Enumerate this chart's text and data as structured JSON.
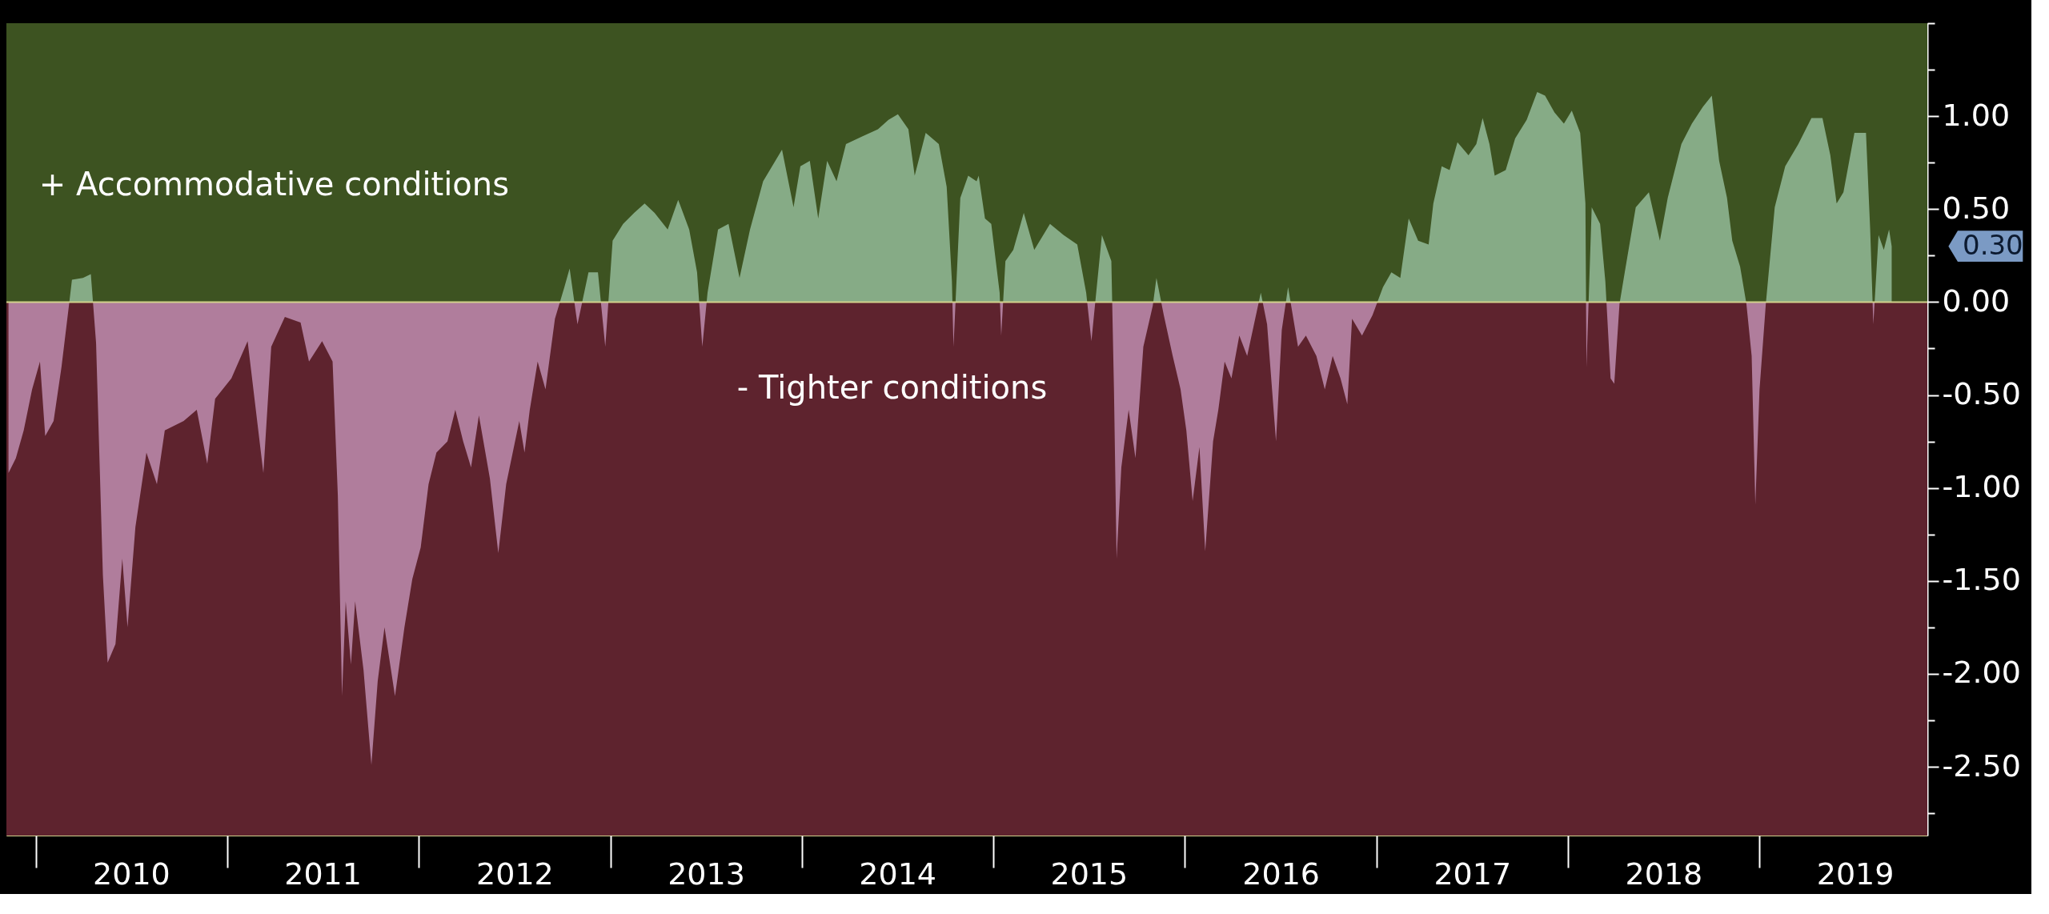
{
  "chart_data": {
    "type": "area",
    "x": [
      "2009-11-10",
      "2009-11-24",
      "2009-12-09",
      "2009-12-25",
      "2010-01-09",
      "2010-01-19",
      "2010-02-04",
      "2010-02-19",
      "2010-03-06",
      "2010-03-11",
      "2010-04-01",
      "2010-04-16",
      "2010-04-26",
      "2010-05-09",
      "2010-05-18",
      "2010-06-02",
      "2010-06-15",
      "2010-06-25",
      "2010-07-10",
      "2010-07-31",
      "2010-08-20",
      "2010-09-04",
      "2010-10-10",
      "2010-11-04",
      "2010-11-24",
      "2010-12-09",
      "2011-01-09",
      "2011-02-09",
      "2011-03-11",
      "2011-03-26",
      "2011-04-21",
      "2011-05-21",
      "2011-06-06",
      "2011-07-01",
      "2011-07-21",
      "2011-07-31",
      "2011-08-08",
      "2011-08-15",
      "2011-08-25",
      "2011-09-02",
      "2011-09-18",
      "2011-10-03",
      "2011-10-15",
      "2011-10-28",
      "2011-11-17",
      "2011-12-05",
      "2011-12-20",
      "2012-01-05",
      "2012-01-20",
      "2012-02-04",
      "2012-02-25",
      "2012-03-11",
      "2012-03-26",
      "2012-04-10",
      "2012-04-25",
      "2012-05-16",
      "2012-06-01",
      "2012-06-16",
      "2012-07-11",
      "2012-07-21",
      "2012-07-31",
      "2012-08-15",
      "2012-08-30",
      "2012-09-17",
      "2012-10-05",
      "2012-10-15",
      "2012-10-30",
      "2012-11-20",
      "2012-12-08",
      "2012-12-22",
      "2013-01-05",
      "2013-01-25",
      "2013-02-15",
      "2013-03-07",
      "2013-03-26",
      "2013-04-20",
      "2013-05-10",
      "2013-05-31",
      "2013-06-15",
      "2013-06-25",
      "2013-07-05",
      "2013-07-25",
      "2013-08-14",
      "2013-09-04",
      "2013-09-24",
      "2013-10-19",
      "2013-11-24",
      "2013-12-16",
      "2013-12-29",
      "2014-01-16",
      "2014-02-01",
      "2014-02-18",
      "2014-03-08",
      "2014-03-26",
      "2014-04-25",
      "2014-05-26",
      "2014-06-15",
      "2014-07-03",
      "2014-07-23",
      "2014-08-04",
      "2014-08-25",
      "2014-09-19",
      "2014-10-04",
      "2014-10-14",
      "2014-10-17",
      "2014-10-30",
      "2014-11-14",
      "2014-11-30",
      "2014-12-04",
      "2014-12-16",
      "2014-12-28",
      "2015-01-13",
      "2015-01-16",
      "2015-01-24",
      "2015-02-08",
      "2015-02-28",
      "2015-03-20",
      "2015-04-19",
      "2015-05-15",
      "2015-06-10",
      "2015-06-27",
      "2015-07-07",
      "2015-07-27",
      "2015-08-14",
      "2015-08-19",
      "2015-08-24",
      "2015-09-02",
      "2015-09-16",
      "2015-09-29",
      "2015-10-14",
      "2015-11-01",
      "2015-11-08",
      "2015-11-22",
      "2015-12-09",
      "2015-12-24",
      "2016-01-04",
      "2016-01-16",
      "2016-01-29",
      "2016-02-09",
      "2016-02-24",
      "2016-03-05",
      "2016-03-17",
      "2016-03-30",
      "2016-04-14",
      "2016-04-29",
      "2016-05-12",
      "2016-05-25",
      "2016-06-06",
      "2016-06-23",
      "2016-07-04",
      "2016-07-16",
      "2016-08-04",
      "2016-08-19",
      "2016-09-08",
      "2016-09-24",
      "2016-10-09",
      "2016-10-24",
      "2016-11-06",
      "2016-11-15",
      "2016-12-04",
      "2016-12-24",
      "2017-01-13",
      "2017-01-29",
      "2017-02-15",
      "2017-03-03",
      "2017-03-21",
      "2017-04-10",
      "2017-04-19",
      "2017-05-05",
      "2017-05-20",
      "2017-06-04",
      "2017-06-25",
      "2017-07-10",
      "2017-07-22",
      "2017-08-04",
      "2017-08-14",
      "2017-09-04",
      "2017-09-22",
      "2017-10-14",
      "2017-11-03",
      "2017-11-18",
      "2017-12-06",
      "2017-12-24",
      "2018-01-08",
      "2018-01-24",
      "2018-02-03",
      "2018-02-05",
      "2018-02-15",
      "2018-03-03",
      "2018-03-13",
      "2018-03-23",
      "2018-03-30",
      "2018-04-09",
      "2018-04-19",
      "2018-05-10",
      "2018-06-04",
      "2018-06-25",
      "2018-07-10",
      "2018-08-05",
      "2018-08-25",
      "2018-09-15",
      "2018-10-02",
      "2018-10-16",
      "2018-10-31",
      "2018-11-10",
      "2018-11-25",
      "2018-12-07",
      "2018-12-17",
      "2018-12-24",
      "2019-01-01",
      "2019-01-13",
      "2019-01-30",
      "2019-02-19",
      "2019-03-16",
      "2019-04-10",
      "2019-05-01",
      "2019-05-16",
      "2019-05-28",
      "2019-06-10",
      "2019-07-01",
      "2019-07-23",
      "2019-07-31",
      "2019-08-06",
      "2019-08-16",
      "2019-08-26",
      "2019-09-05",
      "2019-09-10"
    ],
    "series": [
      {
        "colors": [
          "#b07d9c",
          "#b07d9c",
          "#b07d9c",
          "#b07d9c",
          "#b07d9c",
          "#b07d9c",
          "#b07d9c",
          "#b07d9c",
          "#86ab86",
          "#86ab86",
          "#86ab86",
          "#86ab86",
          "#b07d9c",
          "#b07d9c",
          "#b07d9c",
          "#b07d9c",
          "#b07d9c",
          "#b07d9c",
          "#b07d9c",
          "#b07d9c",
          "#b07d9c",
          "#b07d9c",
          "#b07d9c",
          "#b07d9c",
          "#b07d9c",
          "#b07d9c",
          "#b07d9c",
          "#b07d9c",
          "#b07d9c",
          "#b07d9c",
          "#b07d9c",
          "#b07d9c",
          "#b07d9c",
          "#b07d9c",
          "#b07d9c",
          "#b07d9c",
          "#b07d9c",
          "#b07d9c",
          "#b07d9c",
          "#b07d9c",
          "#b07d9c",
          "#b07d9c",
          "#b07d9c",
          "#b07d9c",
          "#b07d9c",
          "#b07d9c",
          "#b07d9c",
          "#b07d9c",
          "#b07d9c",
          "#b07d9c",
          "#b07d9c",
          "#b07d9c",
          "#b07d9c",
          "#b07d9c",
          "#b07d9c",
          "#b07d9c",
          "#b07d9c",
          "#b07d9c",
          "#b07d9c",
          "#b07d9c",
          "#b07d9c",
          "#b07d9c",
          "#b07d9c",
          "#b07d9c",
          "#86ab86",
          "#86ab86",
          "#b07d9c",
          "#86ab86",
          "#86ab86",
          "#b07d9c",
          "#86ab86",
          "#86ab86",
          "#86ab86",
          "#86ab86",
          "#86ab86",
          "#86ab86",
          "#86ab86",
          "#86ab86",
          "#86ab86",
          "#b07d9c",
          "#86ab86",
          "#86ab86",
          "#86ab86",
          "#86ab86",
          "#86ab86",
          "#86ab86",
          "#86ab86",
          "#86ab86",
          "#86ab86",
          "#86ab86",
          "#86ab86",
          "#86ab86",
          "#86ab86",
          "#86ab86",
          "#86ab86",
          "#86ab86",
          "#86ab86",
          "#86ab86",
          "#86ab86",
          "#86ab86",
          "#86ab86",
          "#86ab86",
          "#86ab86",
          "#86ab86",
          "#b07d9c",
          "#86ab86",
          "#86ab86",
          "#86ab86",
          "#86ab86",
          "#86ab86",
          "#86ab86",
          "#86ab86",
          "#b07d9c",
          "#86ab86",
          "#86ab86",
          "#86ab86",
          "#86ab86",
          "#86ab86",
          "#86ab86",
          "#86ab86",
          "#86ab86",
          "#b07d9c",
          "#86ab86",
          "#86ab86",
          "#b07d9c",
          "#b07d9c",
          "#b07d9c",
          "#b07d9c",
          "#b07d9c",
          "#b07d9c",
          "#b07d9c",
          "#86ab86",
          "#b07d9c",
          "#b07d9c",
          "#b07d9c",
          "#b07d9c",
          "#b07d9c",
          "#b07d9c",
          "#b07d9c",
          "#b07d9c",
          "#b07d9c",
          "#b07d9c",
          "#b07d9c",
          "#b07d9c",
          "#b07d9c",
          "#b07d9c",
          "#86ab86",
          "#b07d9c",
          "#b07d9c",
          "#b07d9c",
          "#86ab86",
          "#b07d9c",
          "#b07d9c",
          "#b07d9c",
          "#b07d9c",
          "#b07d9c",
          "#b07d9c",
          "#b07d9c",
          "#b07d9c",
          "#b07d9c",
          "#b07d9c",
          "#86ab86",
          "#86ab86",
          "#86ab86",
          "#86ab86",
          "#86ab86",
          "#86ab86",
          "#86ab86",
          "#86ab86",
          "#86ab86",
          "#86ab86",
          "#86ab86",
          "#86ab86",
          "#86ab86",
          "#86ab86",
          "#86ab86",
          "#86ab86",
          "#86ab86",
          "#86ab86",
          "#86ab86",
          "#86ab86",
          "#86ab86",
          "#86ab86",
          "#86ab86",
          "#86ab86",
          "#86ab86",
          "#b07d9c",
          "#86ab86",
          "#86ab86",
          "#86ab86",
          "#b07d9c",
          "#b07d9c",
          "#b07d9c",
          "#86ab86",
          "#86ab86",
          "#86ab86",
          "#86ab86",
          "#86ab86",
          "#86ab86",
          "#86ab86",
          "#86ab86",
          "#86ab86",
          "#86ab86",
          "#86ab86",
          "#86ab86",
          "#86ab86",
          "#b07d9c",
          "#b07d9c",
          "#b07d9c",
          "#b07d9c",
          "#b07d9c",
          "#86ab86",
          "#86ab86",
          "#86ab86",
          "#86ab86",
          "#86ab86",
          "#86ab86",
          "#86ab86",
          "#86ab86",
          "#86ab86",
          "#86ab86",
          "#86ab86",
          "#b07d9c",
          "#86ab86",
          "#86ab86",
          "#86ab86",
          "#86ab86"
        ],
        "values": [
          -0.92,
          -0.84,
          -0.69,
          -0.47,
          -0.32,
          -0.72,
          -0.64,
          -0.35,
          0.0,
          0.12,
          0.13,
          0.15,
          -0.22,
          -1.47,
          -1.94,
          -1.84,
          -1.38,
          -1.75,
          -1.21,
          -0.81,
          -0.98,
          -0.69,
          -0.64,
          -0.58,
          -0.87,
          -0.52,
          -0.41,
          -0.21,
          -0.92,
          -0.24,
          -0.08,
          -0.11,
          -0.32,
          -0.21,
          -0.32,
          -1.04,
          -2.12,
          -1.61,
          -1.95,
          -1.61,
          -1.98,
          -2.49,
          -2.04,
          -1.75,
          -2.12,
          -1.75,
          -1.49,
          -1.32,
          -0.98,
          -0.81,
          -0.75,
          -0.58,
          -0.75,
          -0.89,
          -0.61,
          -0.95,
          -1.35,
          -0.98,
          -0.64,
          -0.81,
          -0.58,
          -0.32,
          -0.47,
          -0.09,
          0.08,
          0.18,
          -0.12,
          0.16,
          0.16,
          -0.24,
          0.33,
          0.42,
          0.48,
          0.53,
          0.48,
          0.39,
          0.55,
          0.39,
          0.16,
          -0.24,
          0.05,
          0.39,
          0.42,
          0.13,
          0.39,
          0.65,
          0.82,
          0.51,
          0.73,
          0.76,
          0.45,
          0.76,
          0.65,
          0.85,
          0.89,
          0.93,
          0.98,
          1.01,
          0.93,
          0.68,
          0.91,
          0.85,
          0.62,
          0.11,
          -0.24,
          0.56,
          0.68,
          0.65,
          0.68,
          0.45,
          0.42,
          0.05,
          -0.18,
          0.22,
          0.28,
          0.48,
          0.28,
          0.42,
          0.36,
          0.31,
          0.05,
          -0.21,
          0.36,
          0.22,
          -0.47,
          -1.38,
          -0.89,
          -0.58,
          -0.84,
          -0.24,
          -0.02,
          0.13,
          -0.07,
          -0.29,
          -0.47,
          -0.69,
          -1.07,
          -0.78,
          -1.34,
          -0.75,
          -0.58,
          -0.32,
          -0.41,
          -0.18,
          -0.29,
          -0.12,
          0.05,
          -0.12,
          -0.75,
          -0.15,
          0.08,
          -0.24,
          -0.18,
          -0.29,
          -0.47,
          -0.29,
          -0.41,
          -0.55,
          -0.09,
          -0.18,
          -0.07,
          0.08,
          0.16,
          0.13,
          0.45,
          0.33,
          0.31,
          0.53,
          0.73,
          0.71,
          0.86,
          0.79,
          0.85,
          0.99,
          0.85,
          0.68,
          0.71,
          0.88,
          0.98,
          1.13,
          1.11,
          1.02,
          0.96,
          1.03,
          0.91,
          0.53,
          -0.35,
          0.51,
          0.42,
          0.11,
          -0.41,
          -0.44,
          -0.01,
          0.16,
          0.51,
          0.59,
          0.33,
          0.56,
          0.85,
          0.96,
          1.05,
          1.11,
          0.76,
          0.56,
          0.33,
          0.19,
          -0.01,
          -0.29,
          -1.09,
          -0.47,
          -0.01,
          0.51,
          0.73,
          0.85,
          0.99,
          0.99,
          0.79,
          0.53,
          0.59,
          0.91,
          0.91,
          0.39,
          -0.12,
          0.36,
          0.28,
          0.39,
          0.3
        ]
      }
    ],
    "xlim": [
      "2009-11-06",
      "2019-11-17"
    ],
    "xticks": [
      {
        "value": "2010-01-01",
        "label": null
      },
      {
        "value": "2011-01-01",
        "label": null
      },
      {
        "value": "2012-01-01",
        "label": null
      },
      {
        "value": "2013-01-01",
        "label": null
      },
      {
        "value": "2014-01-01",
        "label": null
      },
      {
        "value": "2015-01-01",
        "label": null
      },
      {
        "value": "2016-01-01",
        "label": null
      },
      {
        "value": "2017-01-01",
        "label": null
      },
      {
        "value": "2018-01-01",
        "label": null
      },
      {
        "value": "2019-01-01",
        "label": null
      },
      {
        "value": "2010-07-02",
        "label": "2010"
      },
      {
        "value": "2011-07-02",
        "label": "2011"
      },
      {
        "value": "2012-07-02",
        "label": "2012"
      },
      {
        "value": "2013-07-02",
        "label": "2013"
      },
      {
        "value": "2014-07-02",
        "label": "2014"
      },
      {
        "value": "2015-07-02",
        "label": "2015"
      },
      {
        "value": "2016-07-02",
        "label": "2016"
      },
      {
        "value": "2017-07-02",
        "label": "2017"
      },
      {
        "value": "2018-07-02",
        "label": "2018"
      },
      {
        "value": "2019-07-02",
        "label": "2019"
      }
    ],
    "ylim": [
      -2.87,
      1.5
    ],
    "yticks": [
      {
        "value": 1.5,
        "label": null
      },
      {
        "value": 1.25,
        "label": null
      },
      {
        "value": 1.0,
        "label": "1.00"
      },
      {
        "value": 0.75,
        "label": null
      },
      {
        "value": 0.5,
        "label": "0.50"
      },
      {
        "value": 0.25,
        "label": null
      },
      {
        "value": 0.0,
        "label": "0.00"
      },
      {
        "value": -0.25,
        "label": null
      },
      {
        "value": -0.5,
        "label": "-0.50"
      },
      {
        "value": -0.75,
        "label": null
      },
      {
        "value": -1.0,
        "label": "-1.00"
      },
      {
        "value": -1.25,
        "label": null
      },
      {
        "value": -1.5,
        "label": "-1.50"
      },
      {
        "value": -1.75,
        "label": null
      },
      {
        "value": -2.0,
        "label": "-2.00"
      },
      {
        "value": -2.25,
        "label": null
      },
      {
        "value": -2.5,
        "label": "-2.50"
      },
      {
        "value": -2.75,
        "label": null
      }
    ],
    "grid": true,
    "bands": [
      {
        "axis": "y",
        "from": 0,
        "to": 1.5,
        "color": "#3d5321"
      },
      {
        "axis": "y",
        "from": -2.87,
        "to": 0,
        "color": "#5e232e"
      }
    ],
    "ref_lines": [
      {
        "axis": "y",
        "value": 0,
        "color": "#d2d28c"
      }
    ],
    "annotations": [
      "+ Accommodative conditions",
      "- Tighter conditions",
      "0.30"
    ]
  }
}
